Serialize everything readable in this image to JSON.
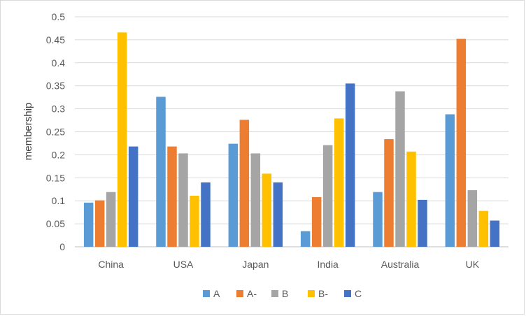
{
  "chart_data": {
    "type": "bar",
    "title": "",
    "xlabel": "",
    "ylabel": "membership",
    "ylim": [
      0,
      0.5
    ],
    "yticks": [
      "0",
      "0.05",
      "0.1",
      "0.15",
      "0.2",
      "0.25",
      "0.3",
      "0.35",
      "0.4",
      "0.45",
      "0.5"
    ],
    "grid": true,
    "legend_position": "bottom",
    "categories": [
      "China",
      "USA",
      "Japan",
      "India",
      "Australia",
      "UK"
    ],
    "series": [
      {
        "name": "A",
        "color": "#5b9bd5",
        "values": [
          0.096,
          0.326,
          0.224,
          0.034,
          0.119,
          0.288
        ]
      },
      {
        "name": "A-",
        "color": "#ed7d31",
        "values": [
          0.101,
          0.218,
          0.276,
          0.108,
          0.234,
          0.452
        ]
      },
      {
        "name": "B",
        "color": "#a5a5a5",
        "values": [
          0.119,
          0.203,
          0.203,
          0.221,
          0.338,
          0.123
        ]
      },
      {
        "name": "B-",
        "color": "#ffc000",
        "values": [
          0.466,
          0.111,
          0.159,
          0.279,
          0.207,
          0.078
        ]
      },
      {
        "name": "C",
        "color": "#4472c4",
        "values": [
          0.218,
          0.14,
          0.14,
          0.355,
          0.102,
          0.057
        ]
      }
    ]
  }
}
